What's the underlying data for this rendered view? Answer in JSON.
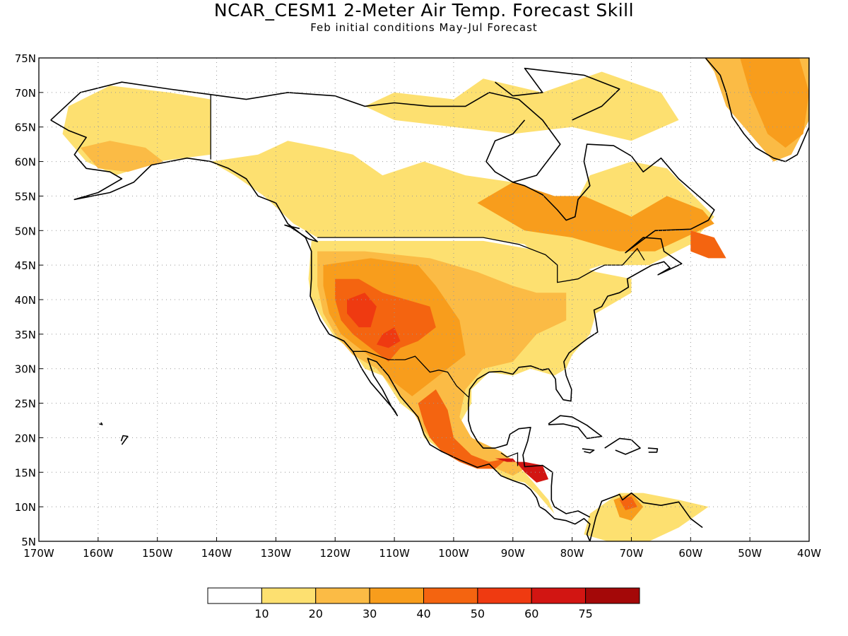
{
  "title": "NCAR_CESM1 2-Meter Air Temp. Forecast Skill",
  "subtitle": "Feb initial conditions   May-Jul Forecast",
  "map": {
    "lon_range": [
      -170,
      -40
    ],
    "lat_range": [
      5,
      75
    ],
    "lon_ticks": [
      {
        "value": -170,
        "label": "170W"
      },
      {
        "value": -160,
        "label": "160W"
      },
      {
        "value": -150,
        "label": "150W"
      },
      {
        "value": -140,
        "label": "140W"
      },
      {
        "value": -130,
        "label": "130W"
      },
      {
        "value": -120,
        "label": "120W"
      },
      {
        "value": -110,
        "label": "110W"
      },
      {
        "value": -100,
        "label": "100W"
      },
      {
        "value": -90,
        "label": "90W"
      },
      {
        "value": -80,
        "label": "80W"
      },
      {
        "value": -70,
        "label": "70W"
      },
      {
        "value": -60,
        "label": "60W"
      },
      {
        "value": -50,
        "label": "50W"
      },
      {
        "value": -40,
        "label": "40W"
      }
    ],
    "lat_ticks": [
      {
        "value": 5,
        "label": "5N"
      },
      {
        "value": 10,
        "label": "10N"
      },
      {
        "value": 15,
        "label": "15N"
      },
      {
        "value": 20,
        "label": "20N"
      },
      {
        "value": 25,
        "label": "25N"
      },
      {
        "value": 30,
        "label": "30N"
      },
      {
        "value": 35,
        "label": "35N"
      },
      {
        "value": 40,
        "label": "40N"
      },
      {
        "value": 45,
        "label": "45N"
      },
      {
        "value": 50,
        "label": "50N"
      },
      {
        "value": 55,
        "label": "55N"
      },
      {
        "value": 60,
        "label": "60N"
      },
      {
        "value": 65,
        "label": "65N"
      },
      {
        "value": 70,
        "label": "70N"
      },
      {
        "value": 75,
        "label": "75N"
      }
    ],
    "grid": true
  },
  "legend": {
    "colors": [
      "#ffffff",
      "#fde070",
      "#fbbb45",
      "#f89d1c",
      "#f46410",
      "#ef3a11",
      "#d21512",
      "#a40808"
    ],
    "labels": [
      "10",
      "20",
      "30",
      "40",
      "50",
      "60",
      "75"
    ]
  },
  "skill_regions": [
    {
      "level": 1,
      "coords": [
        [
          -165,
          68
        ],
        [
          -158,
          71
        ],
        [
          -148,
          70
        ],
        [
          -141,
          69
        ],
        [
          -141,
          61
        ],
        [
          -150,
          60
        ],
        [
          -157,
          58
        ],
        [
          -162,
          60
        ],
        [
          -166,
          64
        ]
      ]
    },
    {
      "level": 2,
      "coords": [
        [
          -163,
          62
        ],
        [
          -158,
          63
        ],
        [
          -152,
          62
        ],
        [
          -149,
          60
        ],
        [
          -155,
          58.5
        ],
        [
          -160,
          59
        ]
      ]
    },
    {
      "level": 1,
      "coords": [
        [
          -141,
          60
        ],
        [
          -133,
          61
        ],
        [
          -128,
          63
        ],
        [
          -122,
          62
        ],
        [
          -117,
          61
        ],
        [
          -112,
          58
        ],
        [
          -105,
          60
        ],
        [
          -98,
          58
        ],
        [
          -90,
          57
        ],
        [
          -85,
          53
        ],
        [
          -80,
          53
        ],
        [
          -77,
          58
        ],
        [
          -70,
          60
        ],
        [
          -64,
          59
        ],
        [
          -56,
          52
        ],
        [
          -60,
          48
        ],
        [
          -67,
          45
        ],
        [
          -75,
          45
        ],
        [
          -82,
          43
        ],
        [
          -88,
          48
        ],
        [
          -95,
          49
        ],
        [
          -110,
          49
        ],
        [
          -123,
          49
        ],
        [
          -127,
          51
        ],
        [
          -132,
          55
        ],
        [
          -137,
          58
        ]
      ]
    },
    {
      "level": 1,
      "coords": [
        [
          -115,
          68
        ],
        [
          -110,
          70
        ],
        [
          -100,
          69
        ],
        [
          -95,
          72
        ],
        [
          -85,
          70
        ],
        [
          -75,
          73
        ],
        [
          -65,
          70
        ],
        [
          -62,
          66
        ],
        [
          -70,
          63
        ],
        [
          -80,
          65
        ],
        [
          -90,
          64
        ],
        [
          -100,
          65
        ],
        [
          -110,
          66
        ]
      ]
    },
    {
      "level": 1,
      "coords": [
        [
          -124,
          48.5
        ],
        [
          -118,
          48.5
        ],
        [
          -105,
          48.5
        ],
        [
          -95,
          48.5
        ],
        [
          -85,
          47
        ],
        [
          -76,
          44
        ],
        [
          -70,
          43
        ],
        [
          -70,
          41
        ],
        [
          -76,
          38
        ],
        [
          -77,
          35
        ],
        [
          -80,
          32
        ],
        [
          -81,
          30
        ],
        [
          -83,
          29
        ],
        [
          -87,
          30
        ],
        [
          -90,
          29
        ],
        [
          -94,
          29.5
        ],
        [
          -97,
          27
        ],
        [
          -97,
          25
        ],
        [
          -99,
          22
        ],
        [
          -97,
          20
        ],
        [
          -95,
          18
        ],
        [
          -92,
          18
        ],
        [
          -90,
          16
        ],
        [
          -88,
          15
        ],
        [
          -84,
          11
        ],
        [
          -83,
          9
        ],
        [
          -86,
          12
        ],
        [
          -88,
          13.5
        ],
        [
          -91,
          14
        ],
        [
          -94,
          16
        ],
        [
          -97,
          16
        ],
        [
          -101,
          17.5
        ],
        [
          -105,
          20
        ],
        [
          -106,
          23
        ],
        [
          -109,
          25
        ],
        [
          -112,
          29
        ],
        [
          -115,
          30
        ],
        [
          -117,
          32.5
        ],
        [
          -120,
          34.5
        ],
        [
          -122,
          37
        ],
        [
          -124,
          40
        ],
        [
          -124.5,
          43
        ]
      ]
    },
    {
      "level": 2,
      "coords": [
        [
          -123,
          47
        ],
        [
          -115,
          47
        ],
        [
          -104,
          46
        ],
        [
          -96,
          44
        ],
        [
          -90,
          42
        ],
        [
          -86,
          41
        ],
        [
          -81,
          41
        ],
        [
          -81,
          37
        ],
        [
          -86,
          35
        ],
        [
          -90,
          31
        ],
        [
          -95,
          30
        ],
        [
          -98,
          27
        ],
        [
          -99,
          23
        ],
        [
          -97,
          20
        ],
        [
          -92,
          18
        ],
        [
          -88,
          15.5
        ],
        [
          -90,
          14.5
        ],
        [
          -94,
          16
        ],
        [
          -98,
          17
        ],
        [
          -102,
          18
        ],
        [
          -105,
          21
        ],
        [
          -107,
          24
        ],
        [
          -110,
          27
        ],
        [
          -113,
          30
        ],
        [
          -117,
          32
        ],
        [
          -120,
          35
        ],
        [
          -122,
          38
        ],
        [
          -123,
          42
        ]
      ]
    },
    {
      "level": 3,
      "coords": [
        [
          -122,
          45
        ],
        [
          -114,
          46
        ],
        [
          -106,
          45
        ],
        [
          -103,
          42
        ],
        [
          -99,
          37
        ],
        [
          -98,
          32
        ],
        [
          -101,
          30
        ],
        [
          -104,
          28
        ],
        [
          -107,
          26
        ],
        [
          -110,
          28
        ],
        [
          -113,
          31
        ],
        [
          -116,
          33
        ],
        [
          -119,
          35
        ],
        [
          -121,
          38
        ],
        [
          -122,
          42
        ]
      ]
    },
    {
      "level": 4,
      "coords": [
        [
          -120,
          43
        ],
        [
          -116,
          43
        ],
        [
          -112,
          41
        ],
        [
          -108,
          40
        ],
        [
          -104,
          39
        ],
        [
          -103,
          36
        ],
        [
          -106,
          34
        ],
        [
          -109,
          33
        ],
        [
          -111,
          31
        ],
        [
          -114,
          33
        ],
        [
          -117,
          35
        ],
        [
          -119,
          37
        ],
        [
          -120,
          40
        ]
      ]
    },
    {
      "level": 5,
      "coords": [
        [
          -118,
          40
        ],
        [
          -115,
          41
        ],
        [
          -113,
          39
        ],
        [
          -114,
          36
        ],
        [
          -116,
          36
        ],
        [
          -118,
          38
        ]
      ]
    },
    {
      "level": 5,
      "coords": [
        [
          -112,
          35
        ],
        [
          -110,
          36
        ],
        [
          -109,
          34
        ],
        [
          -111,
          33
        ],
        [
          -113,
          33.5
        ]
      ]
    },
    {
      "level": 4,
      "coords": [
        [
          -106,
          25
        ],
        [
          -103,
          27
        ],
        [
          -101,
          24
        ],
        [
          -100,
          20
        ],
        [
          -97,
          17.5
        ],
        [
          -94,
          16.5
        ],
        [
          -91,
          17
        ],
        [
          -93,
          15.5
        ],
        [
          -96,
          15.5
        ],
        [
          -99,
          16.5
        ],
        [
          -102,
          18
        ],
        [
          -104,
          20
        ],
        [
          -105,
          22
        ]
      ]
    },
    {
      "level": 6,
      "coords": [
        [
          -93,
          17
        ],
        [
          -90,
          17
        ],
        [
          -88,
          15
        ],
        [
          -86,
          13.5
        ],
        [
          -84,
          14
        ],
        [
          -85,
          16
        ],
        [
          -88,
          16.5
        ],
        [
          -91,
          16.5
        ]
      ]
    },
    {
      "level": 3,
      "coords": [
        [
          -96,
          54
        ],
        [
          -90,
          57
        ],
        [
          -83,
          55
        ],
        [
          -78,
          55
        ],
        [
          -70,
          52
        ],
        [
          -64,
          55
        ],
        [
          -58,
          53
        ],
        [
          -56,
          51
        ],
        [
          -61,
          49
        ],
        [
          -66,
          47
        ],
        [
          -72,
          47
        ],
        [
          -80,
          49
        ],
        [
          -88,
          50
        ]
      ]
    },
    {
      "level": 4,
      "coords": [
        [
          -60,
          50
        ],
        [
          -56,
          49
        ],
        [
          -54,
          46
        ],
        [
          -57,
          46
        ],
        [
          -60,
          47
        ]
      ]
    },
    {
      "level": 2,
      "coords": [
        [
          -60,
          78
        ],
        [
          -48,
          78
        ],
        [
          -40,
          76
        ],
        [
          -40,
          66
        ],
        [
          -43,
          61
        ],
        [
          -46,
          60
        ],
        [
          -50,
          64
        ],
        [
          -54,
          68
        ],
        [
          -56,
          73
        ]
      ]
    },
    {
      "level": 3,
      "coords": [
        [
          -52,
          76
        ],
        [
          -42,
          76
        ],
        [
          -40,
          70
        ],
        [
          -41,
          64
        ],
        [
          -44,
          62
        ],
        [
          -47,
          64
        ],
        [
          -50,
          70
        ]
      ]
    },
    {
      "level": 1,
      "coords": [
        [
          -62,
          7
        ],
        [
          -57,
          10
        ],
        [
          -62,
          11
        ],
        [
          -68,
          12
        ],
        [
          -72,
          12
        ],
        [
          -77,
          9
        ],
        [
          -78,
          6
        ],
        [
          -74,
          5
        ],
        [
          -67,
          5
        ]
      ]
    },
    {
      "level": 3,
      "coords": [
        [
          -73,
          11
        ],
        [
          -70,
          12
        ],
        [
          -68,
          10
        ],
        [
          -70,
          8
        ],
        [
          -72,
          8.5
        ]
      ]
    },
    {
      "level": 4,
      "coords": [
        [
          -72,
          11
        ],
        [
          -70,
          11.5
        ],
        [
          -69,
          10
        ],
        [
          -71,
          9.5
        ]
      ]
    }
  ]
}
